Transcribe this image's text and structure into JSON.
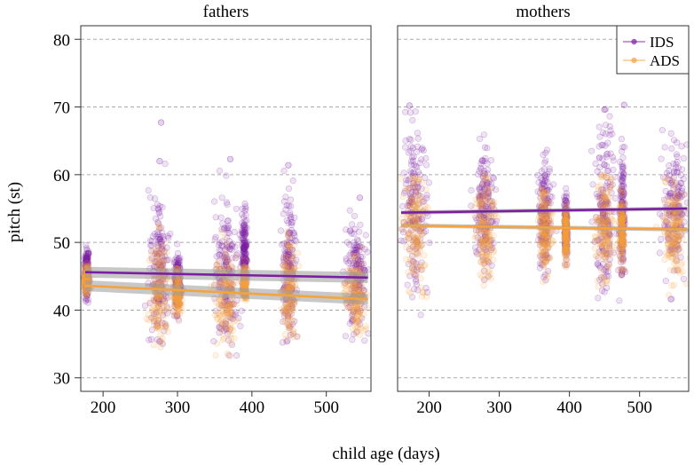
{
  "chart_data": {
    "type": "scatter",
    "xlabel": "child age (days)",
    "ylabel": "pitch (st)",
    "ylim": [
      28,
      82
    ],
    "yticks": [
      30,
      40,
      50,
      60,
      70,
      80
    ],
    "xticks": [
      200,
      300,
      400,
      500
    ],
    "legend": {
      "position": "top-right",
      "entries": [
        {
          "name": "IDS",
          "color": "#7B1FA2"
        },
        {
          "name": "ADS",
          "color": "#F4A340"
        }
      ]
    },
    "panels": [
      {
        "title": "fathers",
        "xlim": [
          170,
          560
        ],
        "clusters": [
          {
            "x": 178,
            "halfwidth": 3,
            "IDS": {
              "mean": 45.5,
              "min": 41,
              "max": 51
            },
            "ADS": {
              "mean": 44.5,
              "min": 42,
              "max": 47
            }
          },
          {
            "x": 275,
            "halfwidth": 10,
            "IDS": {
              "mean": 46,
              "min": 35,
              "max": 62
            },
            "ADS": {
              "mean": 43,
              "min": 34,
              "max": 53
            }
          },
          {
            "x": 300,
            "halfwidth": 4,
            "IDS": {
              "mean": 44,
              "min": 38,
              "max": 50
            },
            "ADS": {
              "mean": 42.5,
              "min": 38,
              "max": 47
            }
          },
          {
            "x": 365,
            "halfwidth": 14,
            "IDS": {
              "mean": 45,
              "min": 33,
              "max": 62
            },
            "ADS": {
              "mean": 42,
              "min": 33,
              "max": 52
            }
          },
          {
            "x": 390,
            "halfwidth": 3,
            "IDS": {
              "mean": 48,
              "min": 42,
              "max": 59
            },
            "ADS": {
              "mean": 44,
              "min": 41,
              "max": 48
            }
          },
          {
            "x": 450,
            "halfwidth": 8,
            "IDS": {
              "mean": 46,
              "min": 35,
              "max": 61
            },
            "ADS": {
              "mean": 43,
              "min": 35,
              "max": 53
            }
          },
          {
            "x": 540,
            "halfwidth": 12,
            "IDS": {
              "mean": 45,
              "min": 35,
              "max": 56
            },
            "ADS": {
              "mean": 42,
              "min": 36,
              "max": 51
            }
          }
        ],
        "outliers": [
          {
            "x": 278,
            "y": 67.7,
            "series": "IDS"
          },
          {
            "x": 276,
            "y": 62,
            "series": "IDS"
          },
          {
            "x": 371,
            "y": 62.3,
            "series": "IDS"
          },
          {
            "x": 449,
            "y": 61.4,
            "series": "IDS"
          },
          {
            "x": 545,
            "y": 56.6,
            "series": "IDS"
          }
        ],
        "trends": [
          {
            "series": "IDS",
            "x": [
              176,
              556
            ],
            "y": [
              45.6,
              44.8
            ],
            "ci": 0.8
          },
          {
            "series": "ADS",
            "x": [
              176,
              556
            ],
            "y": [
              43.6,
              41.6
            ],
            "ci": 0.8
          }
        ]
      },
      {
        "title": "mothers",
        "xlim": [
          155,
          570
        ],
        "clusters": [
          {
            "x": 180,
            "halfwidth": 15,
            "IDS": {
              "mean": 55,
              "min": 39,
              "max": 70
            },
            "ADS": {
              "mean": 52,
              "min": 37,
              "max": 60
            }
          },
          {
            "x": 280,
            "halfwidth": 12,
            "IDS": {
              "mean": 55,
              "min": 44,
              "max": 66
            },
            "ADS": {
              "mean": 52,
              "min": 40,
              "max": 60
            }
          },
          {
            "x": 365,
            "halfwidth": 8,
            "IDS": {
              "mean": 54,
              "min": 44,
              "max": 65
            },
            "ADS": {
              "mean": 52,
              "min": 43,
              "max": 58
            }
          },
          {
            "x": 395,
            "halfwidth": 2,
            "IDS": {
              "mean": 52,
              "min": 46,
              "max": 58
            },
            "ADS": {
              "mean": 51,
              "min": 46,
              "max": 56
            }
          },
          {
            "x": 450,
            "halfwidth": 12,
            "IDS": {
              "mean": 55,
              "min": 40,
              "max": 70
            },
            "ADS": {
              "mean": 52,
              "min": 40,
              "max": 60
            }
          },
          {
            "x": 475,
            "halfwidth": 3,
            "IDS": {
              "mean": 54,
              "min": 45,
              "max": 66
            },
            "ADS": {
              "mean": 52,
              "min": 45,
              "max": 58
            }
          },
          {
            "x": 550,
            "halfwidth": 14,
            "IDS": {
              "mean": 55,
              "min": 41,
              "max": 67
            },
            "ADS": {
              "mean": 52,
              "min": 40,
              "max": 60
            }
          }
        ],
        "outliers": [
          {
            "x": 478,
            "y": 70.3,
            "series": "IDS"
          },
          {
            "x": 450,
            "y": 69.6,
            "series": "IDS"
          },
          {
            "x": 172,
            "y": 70.2,
            "series": "IDS"
          }
        ],
        "trends": [
          {
            "series": "IDS",
            "x": [
              160,
              568
            ],
            "y": [
              54.4,
              55.0
            ],
            "ci": 0.3
          },
          {
            "series": "ADS",
            "x": [
              160,
              568
            ],
            "y": [
              52.5,
              51.9
            ],
            "ci": 0.3
          }
        ]
      }
    ]
  }
}
